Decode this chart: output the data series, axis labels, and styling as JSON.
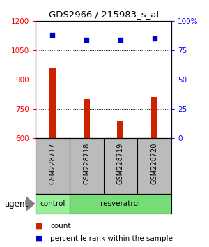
{
  "title": "GDS2966 / 215983_s_at",
  "samples": [
    "GSM228717",
    "GSM228718",
    "GSM228719",
    "GSM228720"
  ],
  "counts": [
    960,
    800,
    690,
    810
  ],
  "percentiles": [
    88,
    84,
    84,
    85
  ],
  "ylim_left": [
    600,
    1200
  ],
  "ylim_right": [
    0,
    100
  ],
  "yticks_left": [
    600,
    750,
    900,
    1050,
    1200
  ],
  "yticks_right": [
    0,
    25,
    50,
    75,
    100
  ],
  "ytick_labels_right": [
    "0",
    "25",
    "50",
    "75",
    "100%"
  ],
  "bar_color": "#cc2200",
  "dot_color": "#0000cc",
  "bar_width": 0.18,
  "agent_label": "agent",
  "legend_count_label": "count",
  "legend_pct_label": "percentile rank within the sample",
  "background_color": "#ffffff",
  "plot_bg": "#ffffff",
  "label_area_color": "#bbbbbb",
  "group_area_color": "#77dd77",
  "control_color": "#99ee99"
}
